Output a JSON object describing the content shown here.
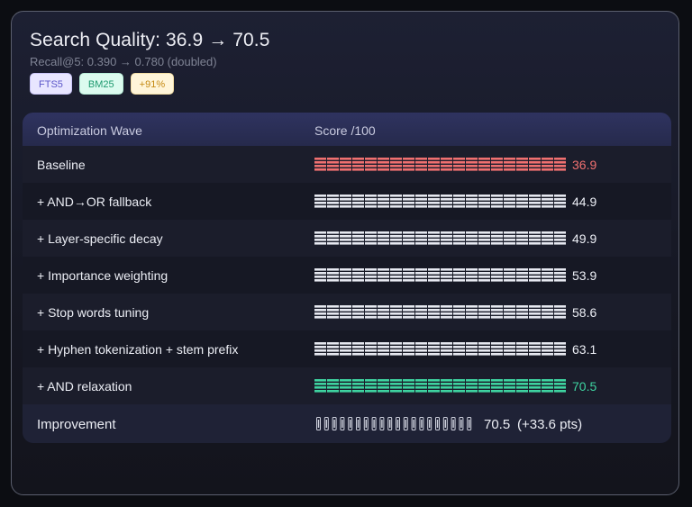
{
  "header": {
    "title": "Search Quality: 36.9 → 70.5",
    "subtitle": "Recall@5: 0.390 → 0.780 (doubled)",
    "badges": [
      "FTS5",
      "BM25",
      "+91%"
    ]
  },
  "table": {
    "col_wave": "Optimization Wave",
    "col_score": "Score /100",
    "rows": [
      {
        "label": "Baseline",
        "score": "36.9",
        "value": 36.9
      },
      {
        "label": "+ AND→OR fallback",
        "score": "44.9",
        "value": 44.9
      },
      {
        "label": "+ Layer-specific decay",
        "score": "49.9",
        "value": 49.9
      },
      {
        "label": "+ Importance weighting",
        "score": "53.9",
        "value": 53.9
      },
      {
        "label": "+ Stop words tuning",
        "score": "58.6",
        "value": 58.6
      },
      {
        "label": "+ Hyphen tokenization + stem prefix",
        "score": "63.1",
        "value": 63.1
      },
      {
        "label": "+ AND relaxation",
        "score": "70.5",
        "value": 70.5
      }
    ],
    "footer": {
      "label": "Improvement",
      "value": "70.5",
      "delta": "(+33.6 pts)"
    }
  },
  "colors": {
    "baseline": "#f07070",
    "neutral": "#e6e8f0",
    "final": "#3ed3a0",
    "badge_text": [
      "#5b56c9",
      "#1f9a6f",
      "#c58a14"
    ]
  }
}
